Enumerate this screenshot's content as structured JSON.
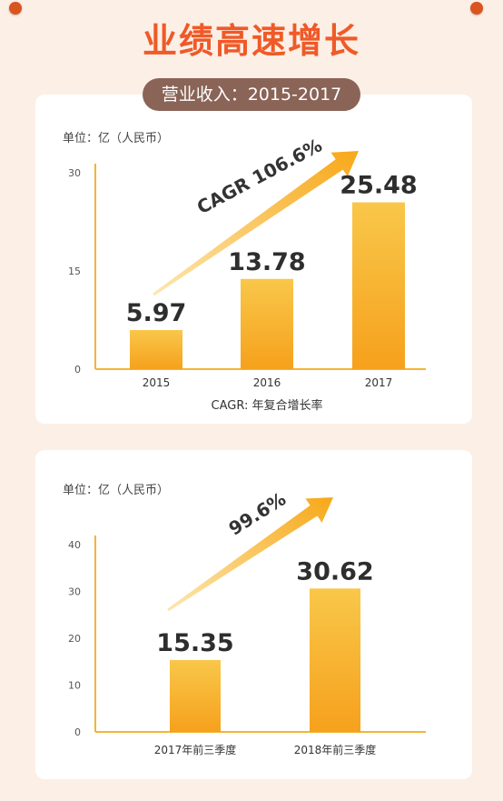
{
  "headline": "业绩高速增长",
  "subtitle": "营业收入：2015-2017",
  "colors": {
    "accent": "#ef5a28",
    "bar_top": "#f9c74a",
    "bar_bottom": "#f6a11c",
    "pill": "#8a6457"
  },
  "chart_data": [
    {
      "type": "bar",
      "unit_label": "单位：亿（人民币）",
      "categories": [
        "2015",
        "2016",
        "2017"
      ],
      "values": [
        5.97,
        13.78,
        25.48
      ],
      "value_labels": [
        "5.97",
        "13.78",
        "25.48"
      ],
      "yticks": [
        "0",
        "15",
        "30"
      ],
      "ylim": [
        0,
        30
      ],
      "growth_label": "CAGR 106.6%",
      "footnote": "CAGR: 年复合增长率"
    },
    {
      "type": "bar",
      "unit_label": "单位：亿（人民币）",
      "categories": [
        "2017年前三季度",
        "2018年前三季度"
      ],
      "values": [
        15.35,
        30.62
      ],
      "value_labels": [
        "15.35",
        "30.62"
      ],
      "yticks": [
        "0",
        "10",
        "20",
        "30",
        "40"
      ],
      "ylim": [
        0,
        40
      ],
      "growth_label": "99.6%",
      "footnote": ""
    }
  ]
}
